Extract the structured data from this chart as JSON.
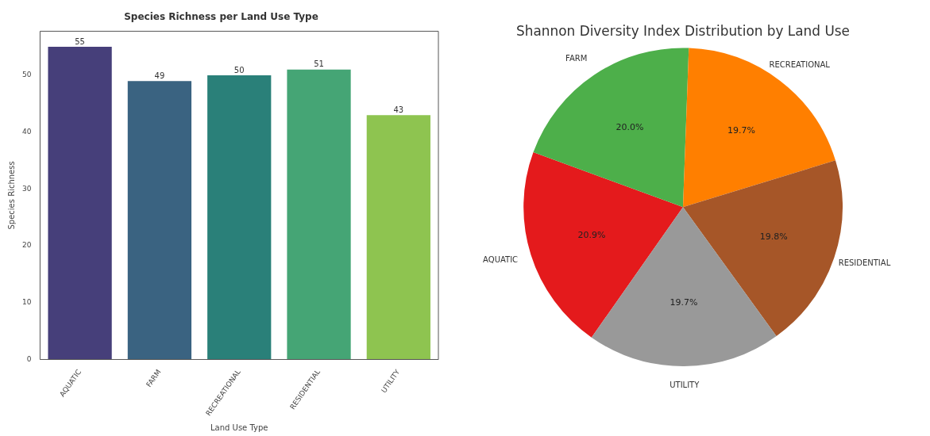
{
  "chart_data": [
    {
      "type": "bar",
      "title": "Species Richness per Land Use Type",
      "xlabel": "Land Use Type",
      "ylabel": "Species Richness",
      "categories": [
        "AQUATIC",
        "FARM",
        "RECREATIONAL",
        "RESIDENTIAL",
        "UTILITY"
      ],
      "values": [
        55,
        49,
        50,
        51,
        43
      ],
      "colors": [
        "#463f7a",
        "#3a6381",
        "#2a8079",
        "#45a575",
        "#8ec450"
      ],
      "ylim": [
        0,
        57.75
      ],
      "yticks": [
        0,
        10,
        20,
        30,
        40,
        50
      ],
      "data_labels": true,
      "grid": false,
      "legend": false
    },
    {
      "type": "pie",
      "title": "Shannon Diversity Index Distribution by Land Use",
      "categories": [
        "AQUATIC",
        "FARM",
        "RECREATIONAL",
        "RESIDENTIAL",
        "UTILITY"
      ],
      "values": [
        20.9,
        20.0,
        19.7,
        19.8,
        19.7
      ],
      "value_labels": [
        "20.9%",
        "20.0%",
        "19.7%",
        "19.8%",
        "19.7%"
      ],
      "colors": [
        "#e41a1c",
        "#4daf4a",
        "#ff7f00",
        "#a65628",
        "#999999"
      ],
      "legend": false
    }
  ]
}
